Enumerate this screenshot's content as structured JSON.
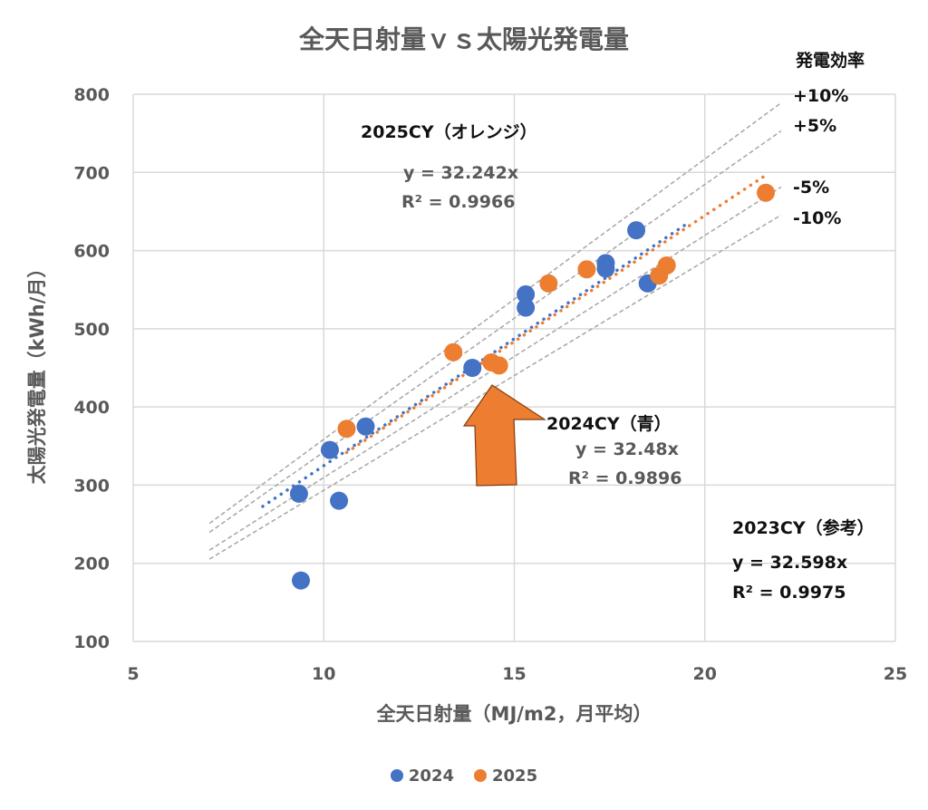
{
  "chart_data": {
    "type": "scatter",
    "title": "全天日射量ｖｓ太陽光発電量",
    "xlabel": "全天日射量（MJ/m2，月平均）",
    "ylabel": "太陽光発電量（kWh/月）",
    "xlim": [
      5,
      25
    ],
    "ylim": [
      100,
      800
    ],
    "xticks": [
      5,
      10,
      15,
      20,
      25
    ],
    "yticks": [
      100,
      200,
      300,
      400,
      500,
      600,
      700,
      800
    ],
    "grid": true,
    "legend_position": "bottom",
    "series": [
      {
        "name": "2024",
        "color": "#4472C4",
        "x": [
          9.35,
          9.4,
          10.16,
          10.4,
          11.1,
          13.9,
          15.3,
          15.3,
          17.4,
          17.4,
          18.2,
          18.5
        ],
        "y": [
          289,
          178,
          345,
          280,
          375,
          450,
          544,
          527,
          584,
          577,
          626,
          558
        ],
        "trendline": {
          "slope": 32.48,
          "x_range": [
            8.4,
            19.6
          ]
        }
      },
      {
        "name": "2025",
        "color": "#ED7D31",
        "x": [
          10.6,
          13.4,
          14.4,
          14.6,
          15.9,
          16.9,
          18.8,
          19.0,
          21.6
        ],
        "y": [
          372,
          470,
          457,
          453,
          558,
          576,
          568,
          581,
          674
        ],
        "trendline": {
          "slope": 32.242,
          "x_range": [
            10.6,
            21.6
          ]
        }
      }
    ],
    "reference_lines": {
      "base_slope": 32.598,
      "factors": [
        1.1,
        1.05,
        0.95,
        0.9
      ],
      "x_range": [
        7,
        22
      ],
      "color": "#A6A6A6"
    },
    "annotations": {
      "efficiency_title": "発電効率",
      "efficiency_labels": [
        "+10%",
        "+5%",
        "-5%",
        "-10%"
      ],
      "cy2025": {
        "title": "2025CY（オレンジ）",
        "eq": "y = 32.242x",
        "r2": "R² = 0.9966"
      },
      "cy2024": {
        "title": "2024CY（青）",
        "eq": "y = 32.48x",
        "r2": "R² = 0.9896"
      },
      "cy2023": {
        "title": "2023CY（参考）",
        "eq": "y = 32.598x",
        "r2": "R² = 0.9975"
      }
    }
  }
}
